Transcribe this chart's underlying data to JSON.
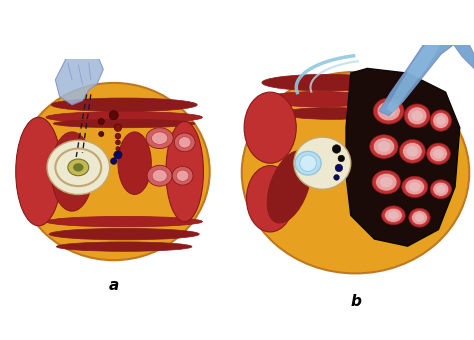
{
  "label_a": "a",
  "label_b": "b",
  "label_fontsize": 11,
  "label_fontweight": "bold",
  "background_color": "#ffffff",
  "figsize": [
    4.74,
    3.4
  ],
  "dpi": 100,
  "colors": {
    "fat_orange": "#E8A020",
    "fat_yellow": "#F0B830",
    "muscle_dark_red": "#8B1A1A",
    "muscle_med_red": "#A52020",
    "muscle_bright_red": "#C03030",
    "muscle_pink": "#D06060",
    "bowel_pink": "#E8A0A0",
    "bowel_inner": "#C07070",
    "vertebra_cream": "#EDE8D0",
    "nucleus_yellow": "#C8B850",
    "nucleus_green": "#6B7A30",
    "disc_outline": "#C0A870",
    "retractor_blue": "#8090C0",
    "retractor_blue2": "#A0B8D8",
    "retractor_bright": "#5080B8",
    "retractor_flat": "#70A0D0",
    "instrument_black": "#1A1A2A",
    "vessel_dark_red": "#5A0808",
    "vessel_red": "#8B1010",
    "vessel_pink": "#C03040",
    "navy_dot": "#0A0A60",
    "dark_cavity": "#1A0A08",
    "cavity_brown": "#2A1208",
    "spinal_cord_blue": "#90C8E0",
    "canal_light_blue": "#B8DCF0",
    "white": "#FFFFFF",
    "black": "#000000",
    "orange_outline": "#C07820"
  }
}
